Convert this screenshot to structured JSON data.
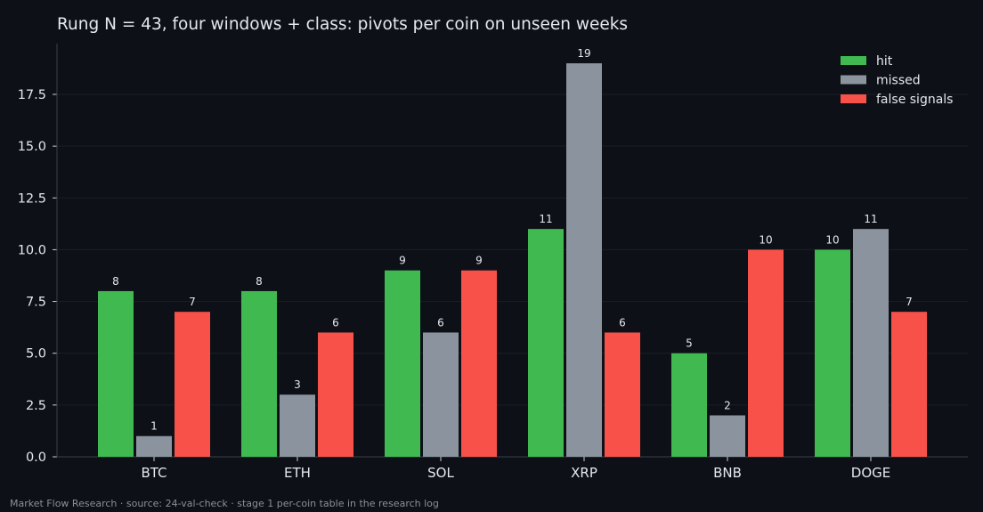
{
  "chart_data": {
    "type": "bar",
    "title": "Rung N = 43, four windows + class: pivots per coin on unseen weeks",
    "xlabel": "",
    "ylabel": "",
    "categories": [
      "BTC",
      "ETH",
      "SOL",
      "XRP",
      "BNB",
      "DOGE"
    ],
    "series": [
      {
        "name": "hit",
        "color": "#3fb950",
        "values": [
          8,
          8,
          9,
          11,
          5,
          10
        ]
      },
      {
        "name": "missed",
        "color": "#8b939e",
        "values": [
          1,
          3,
          6,
          19,
          2,
          11
        ]
      },
      {
        "name": "false signals",
        "color": "#f85149",
        "values": [
          7,
          6,
          9,
          6,
          10,
          7
        ]
      }
    ],
    "ylim": [
      0,
      19.95
    ],
    "yticks": [
      "0.0",
      "2.5",
      "5.0",
      "7.5",
      "10.0",
      "12.5",
      "15.0",
      "17.5"
    ],
    "grid": true,
    "legend_position": "top-right",
    "data_labels": true
  },
  "footer": "Market Flow Research · source: 24-val-check · stage 1 per-coin table in the research log",
  "colors": {
    "background": "#0d1017",
    "axis": "#3a3f4a",
    "grid": "#1a1e26",
    "text": "#e6e8ec"
  }
}
